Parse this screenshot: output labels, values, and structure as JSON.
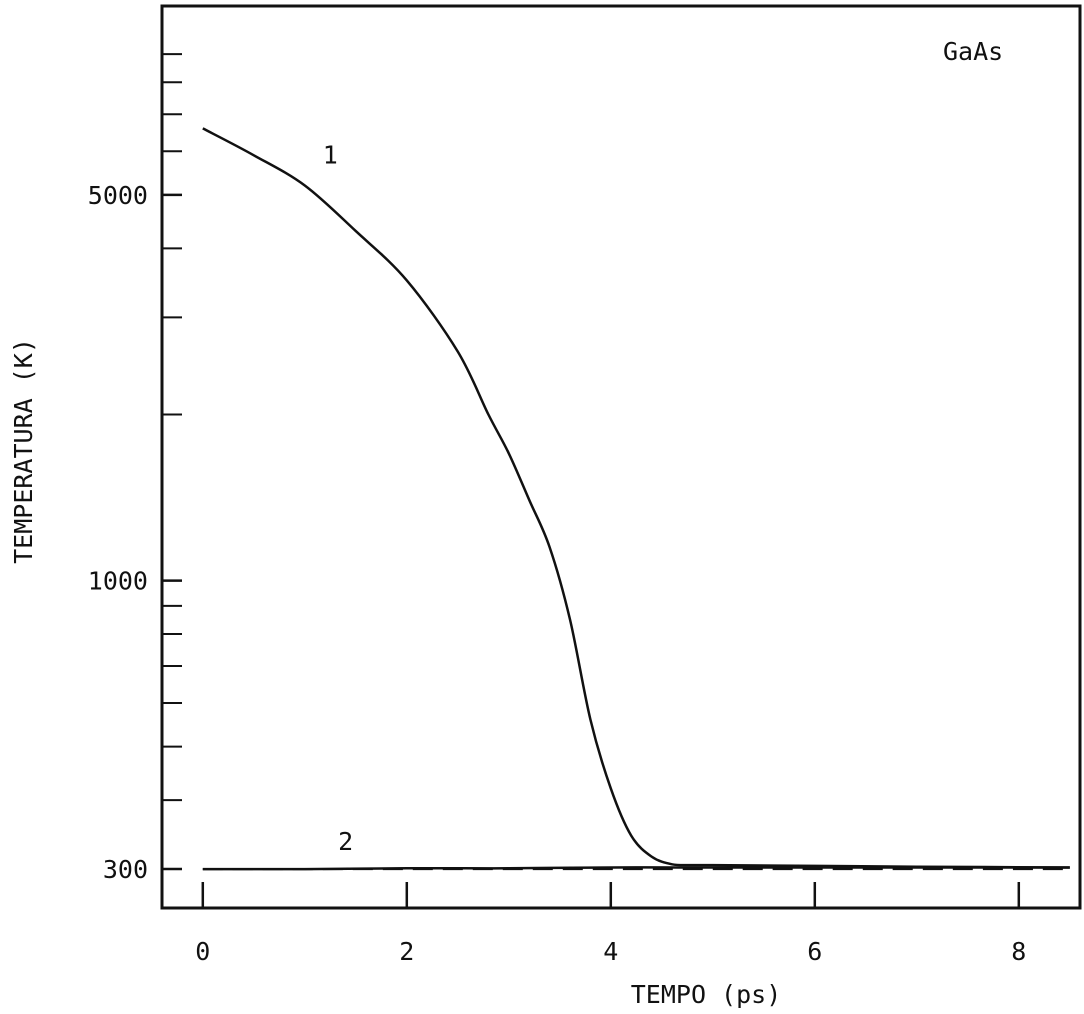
{
  "chart_data": {
    "type": "line",
    "title": "",
    "annotation": "GaAs",
    "xlabel": "TEMPO (ps)",
    "ylabel": "TEMPERATURA (K)",
    "y_scale": "log",
    "xlim": [
      -0.4,
      8.6
    ],
    "ylim": [
      255,
      11000
    ],
    "x_ticks": [
      0,
      2,
      4,
      6,
      8
    ],
    "x_tick_labels": [
      "0",
      "2",
      "4",
      "6",
      "8"
    ],
    "y_tick_labels": [
      {
        "value": 300,
        "label": "300"
      },
      {
        "value": 1000,
        "label": "1000"
      },
      {
        "value": 5000,
        "label": "5000"
      }
    ],
    "y_minor_ticks": [
      400,
      500,
      600,
      700,
      800,
      900,
      2000,
      3000,
      4000,
      6000,
      7000,
      8000,
      9000
    ],
    "grid": false,
    "legend": "none",
    "series": [
      {
        "name": "1",
        "style": "solid",
        "x": [
          0,
          0.5,
          1.0,
          1.5,
          2.0,
          2.5,
          2.8,
          3.0,
          3.2,
          3.4,
          3.6,
          3.8,
          4.0,
          4.2,
          4.4,
          4.6,
          4.8,
          5.0,
          6.0,
          7.0,
          8.5
        ],
        "y": [
          6600,
          5900,
          5200,
          4300,
          3500,
          2600,
          2000,
          1700,
          1400,
          1150,
          850,
          560,
          420,
          345,
          316,
          306,
          305,
          305,
          304,
          303,
          302
        ]
      },
      {
        "name": "2",
        "style": "solid",
        "x": [
          0,
          1,
          2,
          3,
          4,
          5,
          6,
          7,
          8.5
        ],
        "y": [
          300,
          300,
          301,
          301,
          302,
          302,
          302,
          302,
          302
        ]
      },
      {
        "name": "",
        "style": "dashed",
        "x": [
          0,
          2,
          4,
          6,
          8.5
        ],
        "y": [
          300,
          300,
          300,
          300,
          300
        ]
      }
    ],
    "series_labels": [
      {
        "text": "1",
        "x": 1.25,
        "y": 5700
      },
      {
        "text": "2",
        "x": 1.4,
        "y": 325
      }
    ]
  }
}
